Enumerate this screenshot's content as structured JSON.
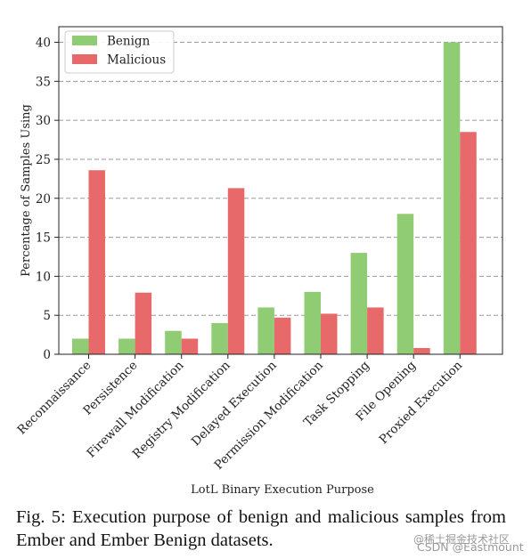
{
  "chart_data": {
    "type": "bar",
    "title": "",
    "xlabel": "LotL Binary Execution Purpose",
    "ylabel": "Percentage of Samples Using",
    "categories": [
      "Reconnaissance",
      "Persistence",
      "Firewall Modification",
      "Registry Modification",
      "Delayed Execution",
      "Permission Modification",
      "Task Stopping",
      "File Opening",
      "Proxied Execution"
    ],
    "series": [
      {
        "name": "Benign",
        "color": "#8fcc73",
        "values": [
          2.0,
          2.0,
          3.0,
          4.0,
          6.0,
          8.0,
          13.0,
          18.0,
          40.0
        ]
      },
      {
        "name": "Malicious",
        "color": "#e8696a",
        "values": [
          23.6,
          7.9,
          2.0,
          21.3,
          4.7,
          5.2,
          6.0,
          0.8,
          28.5
        ]
      }
    ],
    "ylim": [
      0,
      42
    ],
    "yticks": [
      0,
      5,
      10,
      15,
      20,
      25,
      30,
      35,
      40
    ],
    "grid": "horizontal dashed",
    "legend_position": "top-left"
  },
  "caption": "Fig. 5: Execution purpose of benign and malicious samples from Ember and Ember Benign datasets.",
  "watermark": {
    "line1": "@稀土掘金技术社区",
    "line2": "CSDN @Eastmount"
  }
}
